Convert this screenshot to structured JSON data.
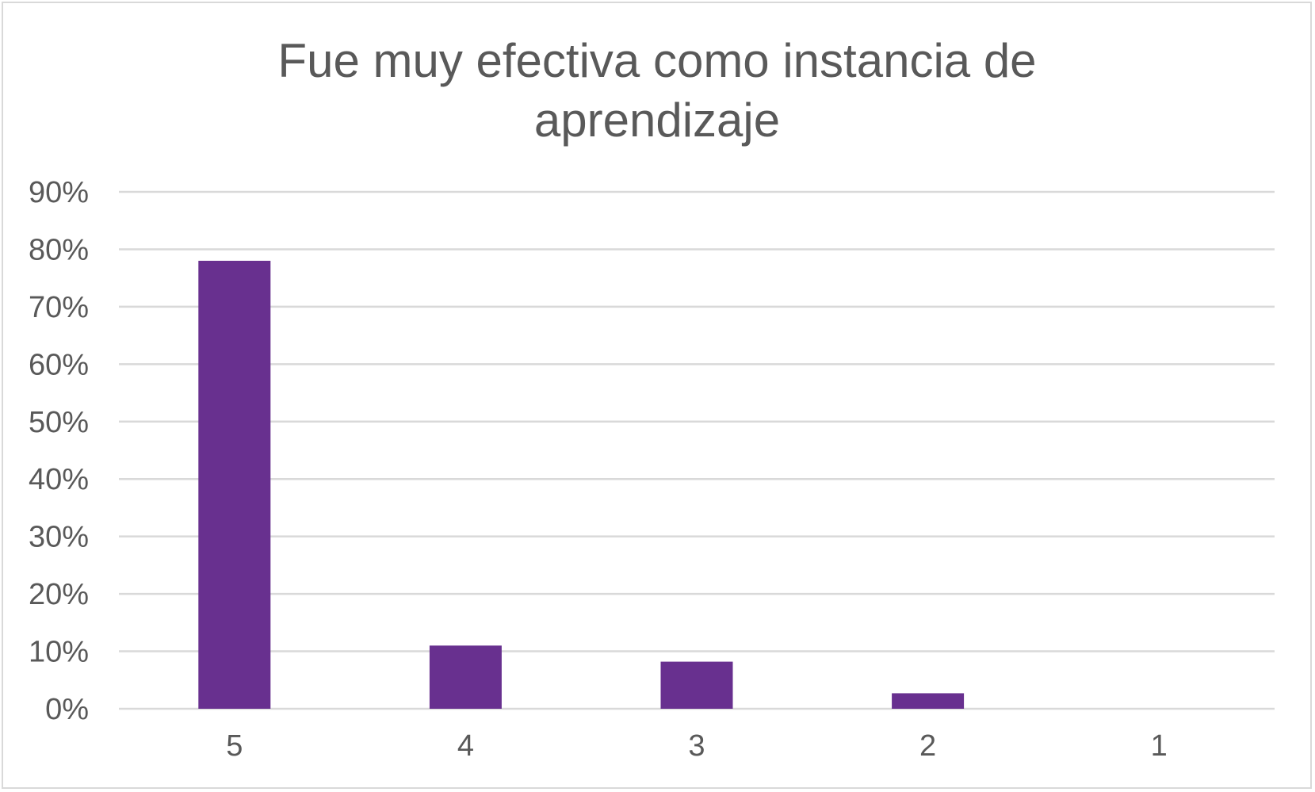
{
  "chart_data": {
    "type": "bar",
    "title": "Fue muy efectiva como instancia de aprendizaje",
    "title_lines": [
      "Fue muy efectiva como instancia de",
      "aprendizaje"
    ],
    "categories": [
      "5",
      "4",
      "3",
      "2",
      "1"
    ],
    "values": [
      0.78,
      0.11,
      0.082,
      0.027,
      0
    ],
    "ylim": [
      0,
      0.9
    ],
    "yticks": [
      0,
      0.1,
      0.2,
      0.3,
      0.4,
      0.5,
      0.6,
      0.7,
      0.8,
      0.9
    ],
    "ytick_labels": [
      "0%",
      "10%",
      "20%",
      "30%",
      "40%",
      "50%",
      "60%",
      "70%",
      "80%",
      "90%"
    ],
    "xlabel": "",
    "ylabel": "",
    "grid": true,
    "legend": "none",
    "bar_color": "#68308f",
    "grid_color": "#d9d9d9",
    "text_color": "#595959"
  }
}
